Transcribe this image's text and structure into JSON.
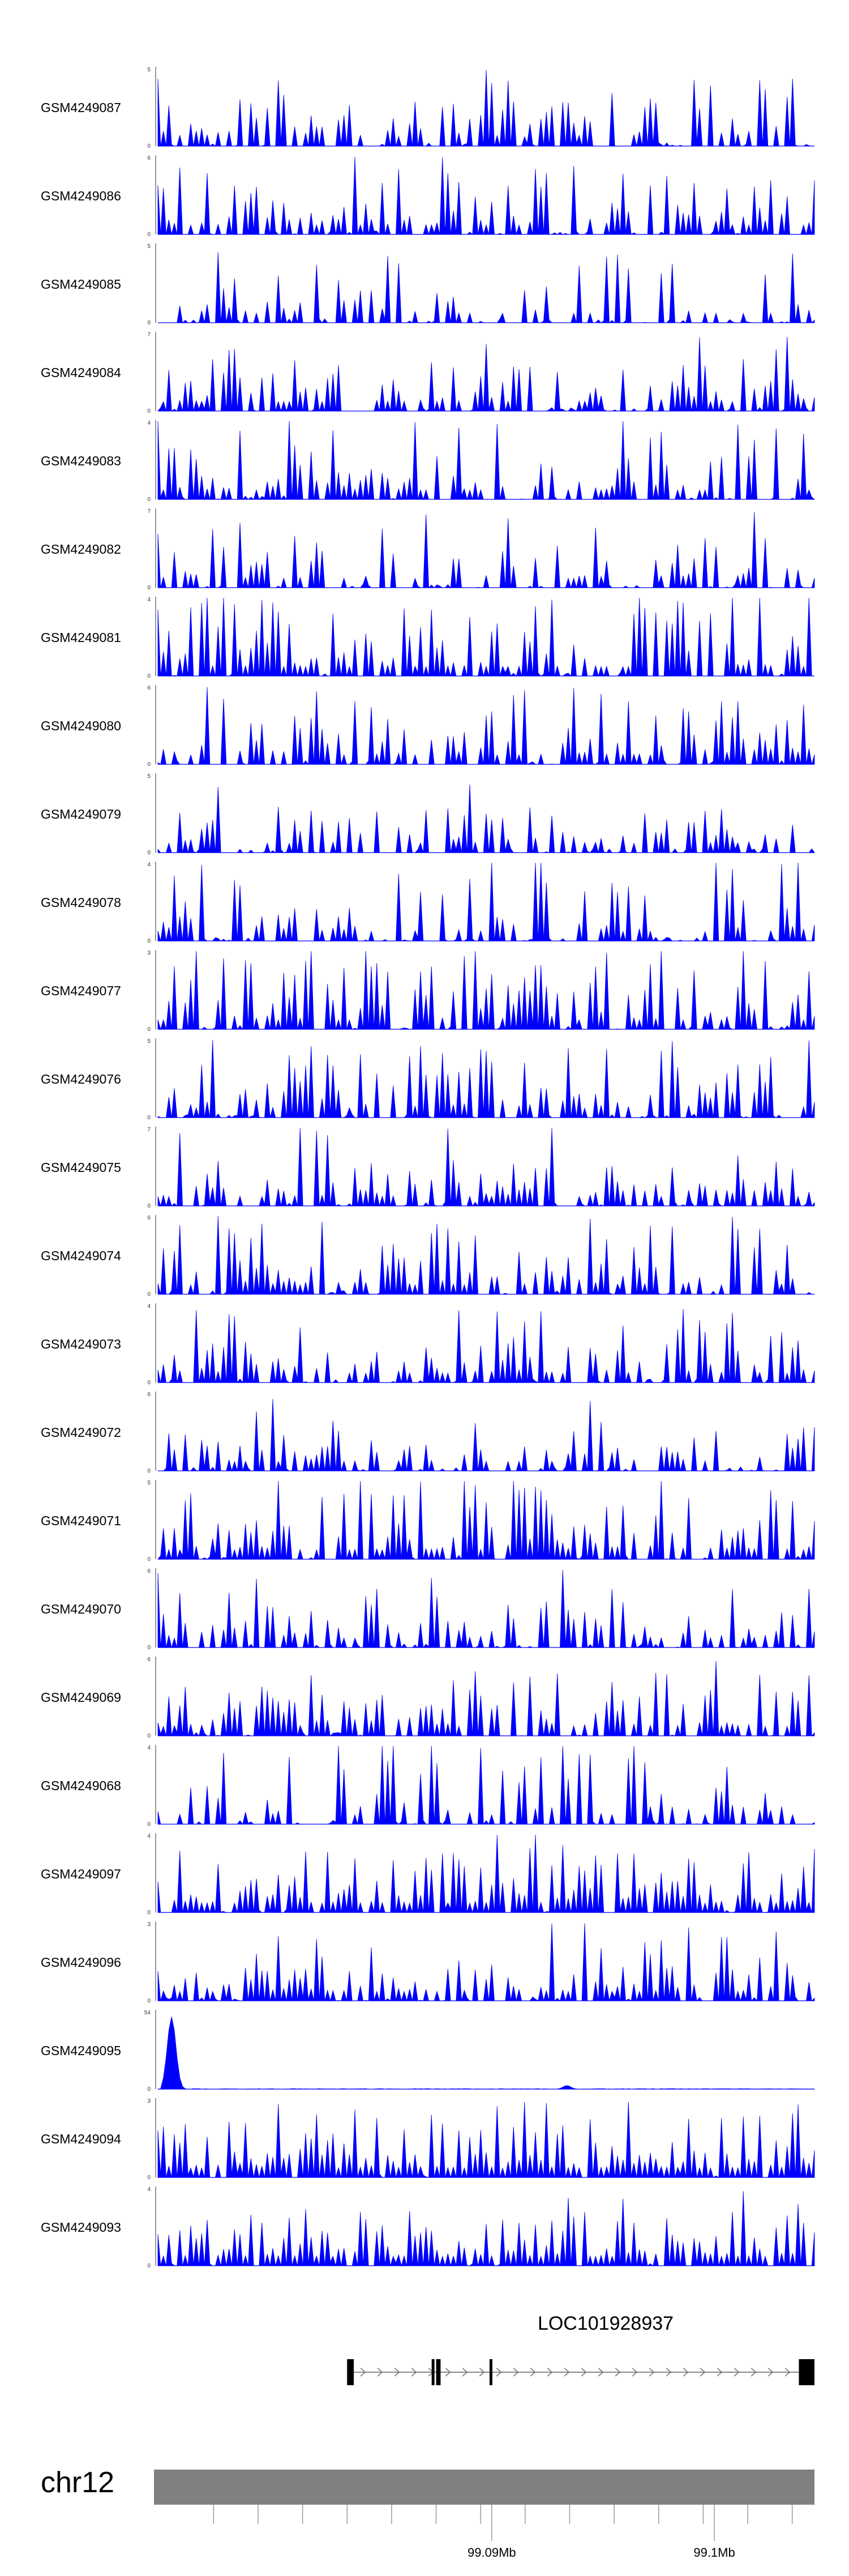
{
  "chart_data": {
    "type": "area",
    "title": "",
    "xlabel": "",
    "ylabel": "",
    "fill_color": "#0000ff",
    "chromosome": "chr12",
    "xlim": [
      99.075,
      99.1045
    ],
    "x_ticks": [
      99.09,
      99.1
    ],
    "x_tick_labels": [
      "99.09Mb",
      "99.1Mb"
    ],
    "tracks": [
      {
        "name": "GSM4249087",
        "ymax": 5,
        "seed": 87,
        "density": 0.62,
        "scale": 0.55
      },
      {
        "name": "GSM4249086",
        "ymax": 6,
        "seed": 86,
        "density": 0.62,
        "scale": 0.45
      },
      {
        "name": "GSM4249085",
        "ymax": 5,
        "seed": 85,
        "density": 0.5,
        "scale": 0.5
      },
      {
        "name": "GSM4249084",
        "ymax": 7,
        "seed": 84,
        "density": 0.6,
        "scale": 0.35
      },
      {
        "name": "GSM4249083",
        "ymax": 4,
        "seed": 83,
        "density": 0.6,
        "scale": 0.6
      },
      {
        "name": "GSM4249082",
        "ymax": 7,
        "seed": 82,
        "density": 0.55,
        "scale": 0.45
      },
      {
        "name": "GSM4249081",
        "ymax": 4,
        "seed": 81,
        "density": 0.75,
        "scale": 0.6
      },
      {
        "name": "GSM4249080",
        "ymax": 6,
        "seed": 80,
        "density": 0.65,
        "scale": 0.45
      },
      {
        "name": "GSM4249079",
        "ymax": 5,
        "seed": 79,
        "density": 0.55,
        "scale": 0.3
      },
      {
        "name": "GSM4249078",
        "ymax": 4,
        "seed": 78,
        "density": 0.55,
        "scale": 0.7
      },
      {
        "name": "GSM4249077",
        "ymax": 3,
        "seed": 77,
        "density": 0.7,
        "scale": 0.65
      },
      {
        "name": "GSM4249076",
        "ymax": 5,
        "seed": 76,
        "density": 0.6,
        "scale": 0.55
      },
      {
        "name": "GSM4249075",
        "ymax": 7,
        "seed": 75,
        "density": 0.65,
        "scale": 0.35
      },
      {
        "name": "GSM4249074",
        "ymax": 6,
        "seed": 74,
        "density": 0.65,
        "scale": 0.6
      },
      {
        "name": "GSM4249073",
        "ymax": 4,
        "seed": 73,
        "density": 0.7,
        "scale": 0.55
      },
      {
        "name": "GSM4249072",
        "ymax": 6,
        "seed": 72,
        "density": 0.6,
        "scale": 0.35
      },
      {
        "name": "GSM4249071",
        "ymax": 5,
        "seed": 71,
        "density": 0.7,
        "scale": 0.6
      },
      {
        "name": "GSM4249070",
        "ymax": 6,
        "seed": 70,
        "density": 0.55,
        "scale": 0.4
      },
      {
        "name": "GSM4249069",
        "ymax": 6,
        "seed": 69,
        "density": 0.7,
        "scale": 0.45
      },
      {
        "name": "GSM4249068",
        "ymax": 4,
        "seed": 68,
        "density": 0.5,
        "scale": 0.7
      },
      {
        "name": "GSM4249097",
        "ymax": 4,
        "seed": 97,
        "density": 0.85,
        "scale": 0.45
      },
      {
        "name": "GSM4249096",
        "ymax": 3,
        "seed": 96,
        "density": 0.75,
        "scale": 0.55
      },
      {
        "name": "GSM4249095",
        "ymax": 54,
        "seed": 95,
        "density": 0.0,
        "scale": 0.02
      },
      {
        "name": "GSM4249094",
        "ymax": 3,
        "seed": 94,
        "density": 0.9,
        "scale": 0.55
      },
      {
        "name": "GSM4249093",
        "ymax": 4,
        "seed": 93,
        "density": 0.9,
        "scale": 0.4
      }
    ],
    "gene": {
      "name": "LOC101928937",
      "start": 99.0835,
      "end": 99.1045,
      "strand": "+",
      "exons": [
        [
          99.0835,
          99.0838
        ],
        [
          99.0873,
          99.0874
        ],
        [
          99.0875,
          99.0877
        ],
        [
          99.0899,
          99.09
        ],
        [
          99.1038,
          99.1045
        ]
      ]
    }
  }
}
